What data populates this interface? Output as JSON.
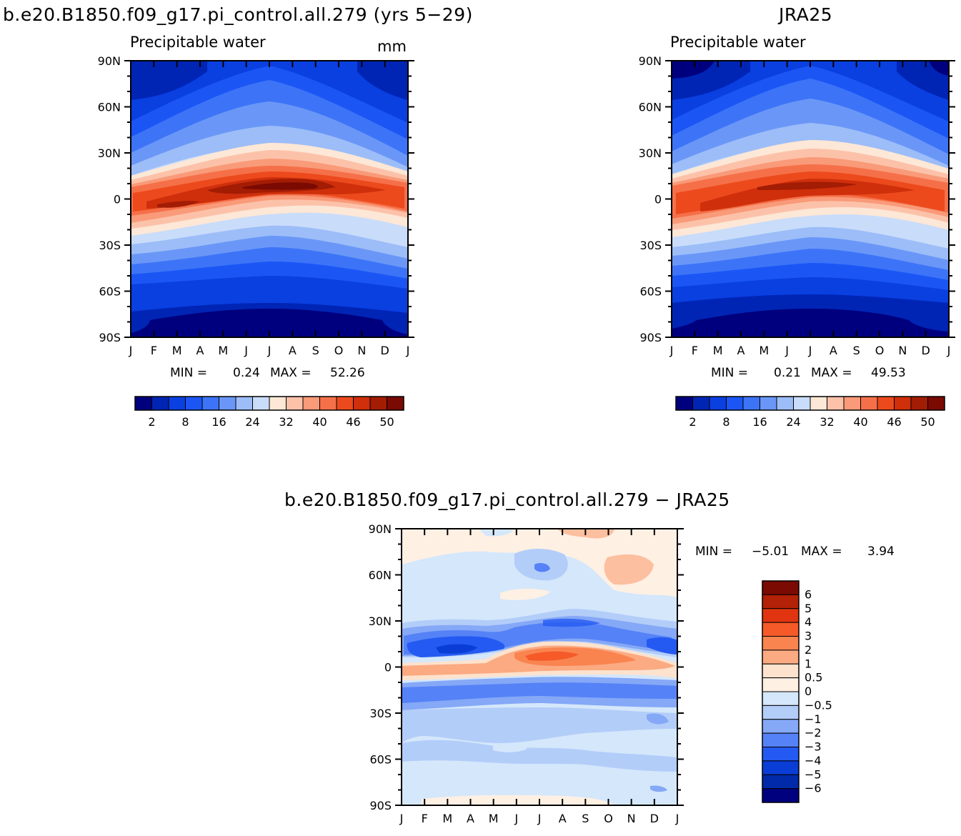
{
  "months": [
    "J",
    "F",
    "M",
    "A",
    "M",
    "J",
    "J",
    "A",
    "S",
    "O",
    "N",
    "D",
    "J"
  ],
  "lat_labels": [
    "90N",
    "60N",
    "30N",
    "0",
    "30S",
    "60S",
    "90S"
  ],
  "panels": {
    "model": {
      "title": "b.e20.B1850.f09_g17.pi_control.all.279 (yrs 5−29)",
      "subtitle": "Precipitable water",
      "units": "mm",
      "min_label": "MIN =",
      "min_value": "0.24",
      "max_label": "MAX =",
      "max_value": "52.26"
    },
    "obs": {
      "title": "JRA25",
      "subtitle": "Precipitable water",
      "min_label": "MIN =",
      "min_value": "0.21",
      "max_label": "MAX =",
      "max_value": "49.53"
    },
    "diff": {
      "title": "b.e20.B1850.f09_g17.pi_control.all.279 − JRA25",
      "min_label": "MIN =",
      "min_value": "−5.01",
      "max_label": "MAX =",
      "max_value": "3.94"
    }
  },
  "colorbars": {
    "abs": {
      "tick_labels": [
        "2",
        "8",
        "16",
        "24",
        "32",
        "40",
        "46",
        "50"
      ],
      "colors": [
        "#00007e",
        "#0025b5",
        "#0a3fe0",
        "#1b56f5",
        "#3d74f7",
        "#6a97f7",
        "#9cbdf8",
        "#c9dcfa",
        "#fde7d6",
        "#fcc2a9",
        "#f99a79",
        "#f57049",
        "#ec4a1d",
        "#cf2f0b",
        "#a31c04",
        "#7a0a02"
      ]
    },
    "diff": {
      "labels": [
        "6",
        "5",
        "4",
        "3",
        "2",
        "1",
        "0.5",
        "0",
        "−0.5",
        "−1",
        "−2",
        "−3",
        "−4",
        "−5",
        "−6"
      ],
      "colors": [
        "#7a0a02",
        "#b32107",
        "#e03510",
        "#f55a28",
        "#f98450",
        "#fbaa82",
        "#fde2cd",
        "#fff0e4",
        "#d4e7fb",
        "#b3cdf9",
        "#85a8f7",
        "#5582f6",
        "#245af1",
        "#0a3dd6",
        "#002aa8",
        "#00007e"
      ]
    }
  },
  "chart_data": [
    {
      "type": "heatmap",
      "title": "b.e20.B1850.f09_g17.pi_control.all.279 (yrs 5−29)",
      "subtitle": "Precipitable water",
      "units": "mm",
      "x": [
        "J",
        "F",
        "M",
        "A",
        "M",
        "J",
        "J",
        "A",
        "S",
        "O",
        "N",
        "D",
        "J"
      ],
      "y": [
        "90N",
        "60N",
        "30N",
        "0",
        "30S",
        "60S",
        "90S"
      ],
      "xlim": [
        0,
        12
      ],
      "ylim": [
        -90,
        90
      ],
      "levels": [
        2,
        5,
        8,
        12,
        16,
        20,
        24,
        28,
        32,
        36,
        40,
        43,
        46,
        48,
        50
      ],
      "min": 0.24,
      "max": 52.26
    },
    {
      "type": "heatmap",
      "title": "JRA25",
      "subtitle": "Precipitable water",
      "x": [
        "J",
        "F",
        "M",
        "A",
        "M",
        "J",
        "J",
        "A",
        "S",
        "O",
        "N",
        "D",
        "J"
      ],
      "y": [
        "90N",
        "60N",
        "30N",
        "0",
        "30S",
        "60S",
        "90S"
      ],
      "xlim": [
        0,
        12
      ],
      "ylim": [
        -90,
        90
      ],
      "levels": [
        2,
        5,
        8,
        12,
        16,
        20,
        24,
        28,
        32,
        36,
        40,
        43,
        46,
        48,
        50
      ],
      "min": 0.21,
      "max": 49.53
    },
    {
      "type": "heatmap",
      "title": "b.e20.B1850.f09_g17.pi_control.all.279 − JRA25",
      "x": [
        "J",
        "F",
        "M",
        "A",
        "M",
        "J",
        "J",
        "A",
        "S",
        "O",
        "N",
        "D",
        "J"
      ],
      "y": [
        "90N",
        "60N",
        "30N",
        "0",
        "30S",
        "60S",
        "90S"
      ],
      "xlim": [
        0,
        12
      ],
      "ylim": [
        -90,
        90
      ],
      "levels": [
        -6,
        -5,
        -4,
        -3,
        -2,
        -1,
        -0.5,
        0,
        0.5,
        1,
        2,
        3,
        4,
        5,
        6
      ],
      "min": -5.01,
      "max": 3.94
    }
  ]
}
